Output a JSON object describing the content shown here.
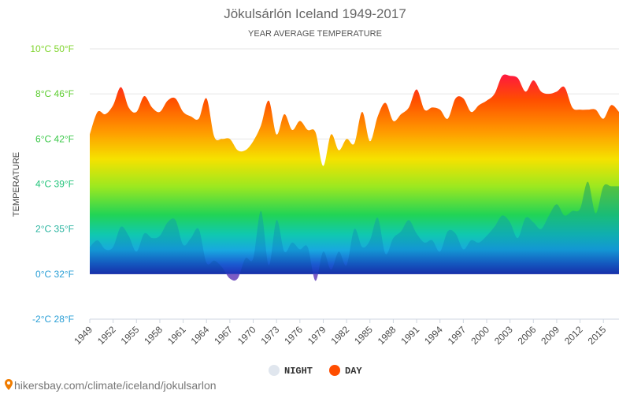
{
  "chart_data": {
    "type": "area",
    "title": "Jökulsárlón Iceland 1949-2017",
    "subtitle": "YEAR AVERAGE TEMPERATURE",
    "ylabel": "TEMPERATURE",
    "ylim": [
      -2,
      10
    ],
    "yticks": [
      {
        "value": -2,
        "label": "-2°C 28°F",
        "color": "#2a9fd6"
      },
      {
        "value": 0,
        "label": "0°C 32°F",
        "color": "#2a9fd6"
      },
      {
        "value": 2,
        "label": "2°C 35°F",
        "color": "#2ab4a0"
      },
      {
        "value": 4,
        "label": "4°C 39°F",
        "color": "#22c47a"
      },
      {
        "value": 6,
        "label": "6°C 42°F",
        "color": "#3cc84a"
      },
      {
        "value": 8,
        "label": "8°C 46°F",
        "color": "#5ccd30"
      },
      {
        "value": 10,
        "label": "10°C 50°F",
        "color": "#7fd42c"
      }
    ],
    "x": [
      1949,
      1950,
      1951,
      1952,
      1953,
      1954,
      1955,
      1956,
      1957,
      1958,
      1959,
      1960,
      1961,
      1962,
      1963,
      1964,
      1965,
      1966,
      1967,
      1968,
      1969,
      1970,
      1971,
      1972,
      1973,
      1974,
      1975,
      1976,
      1977,
      1978,
      1979,
      1980,
      1981,
      1982,
      1983,
      1984,
      1985,
      1986,
      1987,
      1988,
      1989,
      1990,
      1991,
      1992,
      1993,
      1994,
      1995,
      1996,
      1997,
      1998,
      1999,
      2000,
      2001,
      2002,
      2003,
      2004,
      2005,
      2006,
      2007,
      2008,
      2009,
      2010,
      2011,
      2012,
      2013,
      2014,
      2015,
      2016,
      2017
    ],
    "xtick_labels": [
      "1949",
      "1952",
      "1955",
      "1958",
      "1961",
      "1964",
      "1967",
      "1970",
      "1973",
      "1976",
      "1979",
      "1982",
      "1985",
      "1988",
      "1991",
      "1994",
      "1997",
      "2000",
      "2003",
      "2006",
      "2009",
      "2012",
      "2015"
    ],
    "series": [
      {
        "name": "DAY",
        "color": "#ff4d00",
        "values": [
          6.2,
          7.2,
          7.1,
          7.5,
          8.3,
          7.4,
          7.2,
          7.9,
          7.4,
          7.2,
          7.7,
          7.8,
          7.2,
          7.0,
          6.9,
          7.8,
          6.1,
          6.0,
          6.0,
          5.5,
          5.5,
          5.9,
          6.6,
          7.7,
          6.2,
          7.1,
          6.4,
          6.8,
          6.4,
          6.3,
          4.8,
          6.2,
          5.5,
          6.0,
          5.8,
          7.2,
          5.9,
          7.0,
          7.6,
          6.8,
          7.1,
          7.4,
          8.2,
          7.3,
          7.4,
          7.3,
          6.9,
          7.8,
          7.8,
          7.2,
          7.5,
          7.7,
          8.0,
          8.8,
          8.8,
          8.7,
          8.1,
          8.6,
          8.1,
          8.0,
          8.1,
          8.3,
          7.4,
          7.3,
          7.3,
          7.3,
          6.9,
          7.5,
          7.2
        ]
      },
      {
        "name": "NIGHT",
        "color": "#e0e6ee",
        "values": [
          1.2,
          1.5,
          1.1,
          1.2,
          2.1,
          1.7,
          1.0,
          1.8,
          1.6,
          1.7,
          2.3,
          2.4,
          1.3,
          1.6,
          2.0,
          0.5,
          0.6,
          0.3,
          -0.2,
          -0.2,
          0.7,
          0.7,
          2.8,
          0.4,
          2.4,
          1.0,
          1.4,
          1.1,
          1.2,
          -0.3,
          1.0,
          0.2,
          1.0,
          0.4,
          2.0,
          1.2,
          1.5,
          2.5,
          0.9,
          1.6,
          1.9,
          2.4,
          1.8,
          1.4,
          1.5,
          1.0,
          1.9,
          1.8,
          1.1,
          1.5,
          1.4,
          1.7,
          2.1,
          2.6,
          2.3,
          1.6,
          2.5,
          2.3,
          2.0,
          2.6,
          3.1,
          2.6,
          2.8,
          2.9,
          4.1,
          2.7,
          3.9,
          3.9,
          3.9
        ]
      }
    ],
    "legend": {
      "placement": "bottom-center",
      "items": [
        {
          "label": "NIGHT",
          "color": "#e0e6ee"
        },
        {
          "label": "DAY",
          "color": "#ff4d00"
        }
      ]
    }
  },
  "credit": {
    "text": "hikersbay.com/climate/iceland/jokulsarlon",
    "icon": "map-pin-icon"
  }
}
